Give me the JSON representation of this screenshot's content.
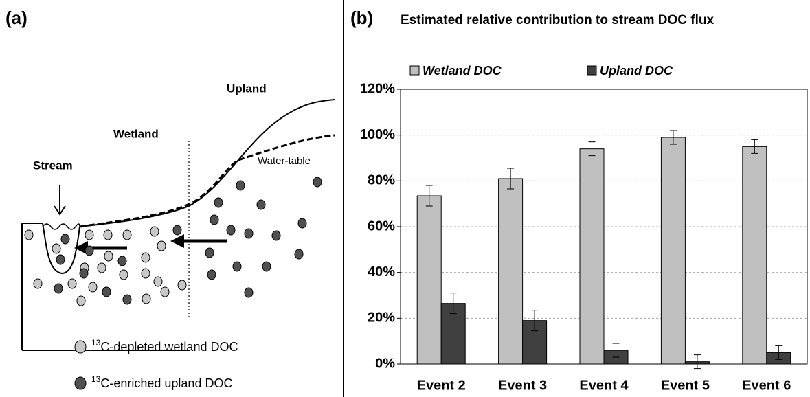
{
  "panel_a": {
    "label": "(a)",
    "regions": [
      "Upland",
      "Wetland",
      "Stream"
    ],
    "water_table": "Water-table",
    "legend": [
      {
        "isotope": "13",
        "text": "C-depleted wetland DOC"
      },
      {
        "isotope": "13",
        "text": "C-enriched upland DOC"
      }
    ]
  },
  "chart_data": {
    "type": "bar",
    "panel_label": "(b)",
    "title": "Estimated relative contribution to stream DOC flux",
    "categories": [
      "Event 2",
      "Event 3",
      "Event 4",
      "Event 5",
      "Event 6"
    ],
    "series": [
      {
        "name": "Wetland DOC",
        "color": "#c0c0c0",
        "values": [
          73.5,
          81,
          94,
          99,
          95
        ],
        "errors": [
          4.5,
          4.5,
          3,
          3,
          3
        ]
      },
      {
        "name": "Upland DOC",
        "color": "#404040",
        "values": [
          26.5,
          19,
          6,
          1,
          5
        ],
        "errors": [
          4.5,
          4.5,
          3,
          3,
          3
        ]
      }
    ],
    "ylim": [
      0,
      120
    ],
    "yticks": [
      {
        "value": 0,
        "label": "0%"
      },
      {
        "value": 20,
        "label": "20%"
      },
      {
        "value": 40,
        "label": "40%"
      },
      {
        "value": 60,
        "label": "60%"
      },
      {
        "value": 80,
        "label": "80%"
      },
      {
        "value": 100,
        "label": "100%"
      },
      {
        "value": 120,
        "label": "120%"
      }
    ],
    "grid": true,
    "legend_position": "top"
  }
}
